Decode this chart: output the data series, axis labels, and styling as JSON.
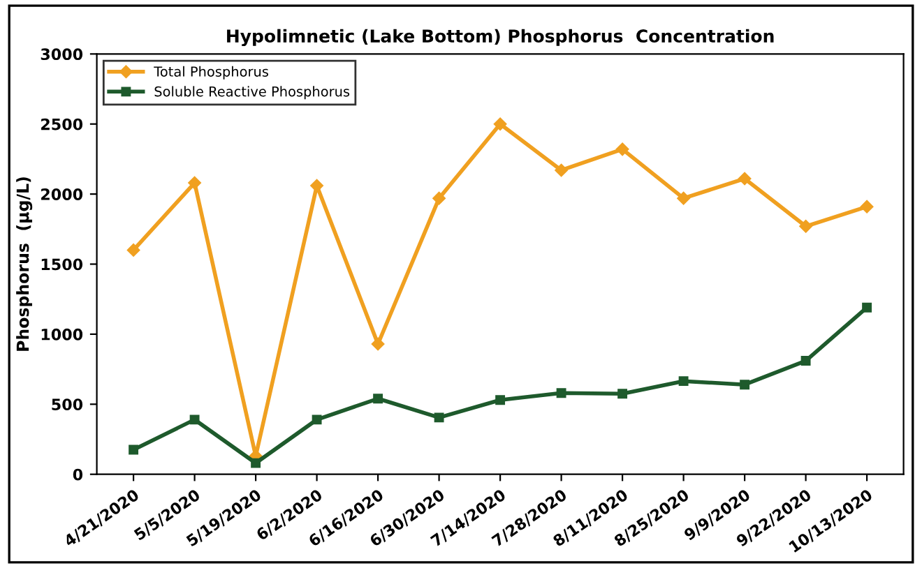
{
  "chart_data": {
    "type": "line",
    "title": "Hypolimnetic (Lake Bottom) Phosphorus  Concentration",
    "ylabel": "Phosphorus  (µg/L)",
    "categories": [
      "4/21/2020",
      "5/5/2020",
      "5/19/2020",
      "6/2/2020",
      "6/16/2020",
      "6/30/2020",
      "7/14/2020",
      "7/28/2020",
      "8/11/2020",
      "8/25/2020",
      "9/9/2020",
      "9/22/2020",
      "10/13/2020"
    ],
    "series": [
      {
        "name": "Total Phosphorus",
        "color": "#f0a020",
        "marker": "diamond",
        "values": [
          1600,
          2080,
          130,
          2060,
          930,
          1970,
          2500,
          2170,
          2320,
          1970,
          2110,
          1770,
          1910
        ]
      },
      {
        "name": "Soluble Reactive Phosphorus",
        "color": "#1e5a2c",
        "marker": "square",
        "values": [
          175,
          390,
          80,
          390,
          540,
          405,
          530,
          580,
          575,
          665,
          640,
          810,
          1190
        ]
      }
    ],
    "ylim": [
      0,
      3000
    ],
    "yticks": [
      0,
      500,
      1000,
      1500,
      2000,
      2500,
      3000
    ],
    "grid": false,
    "legend": "top left",
    "line_style": "solid"
  }
}
